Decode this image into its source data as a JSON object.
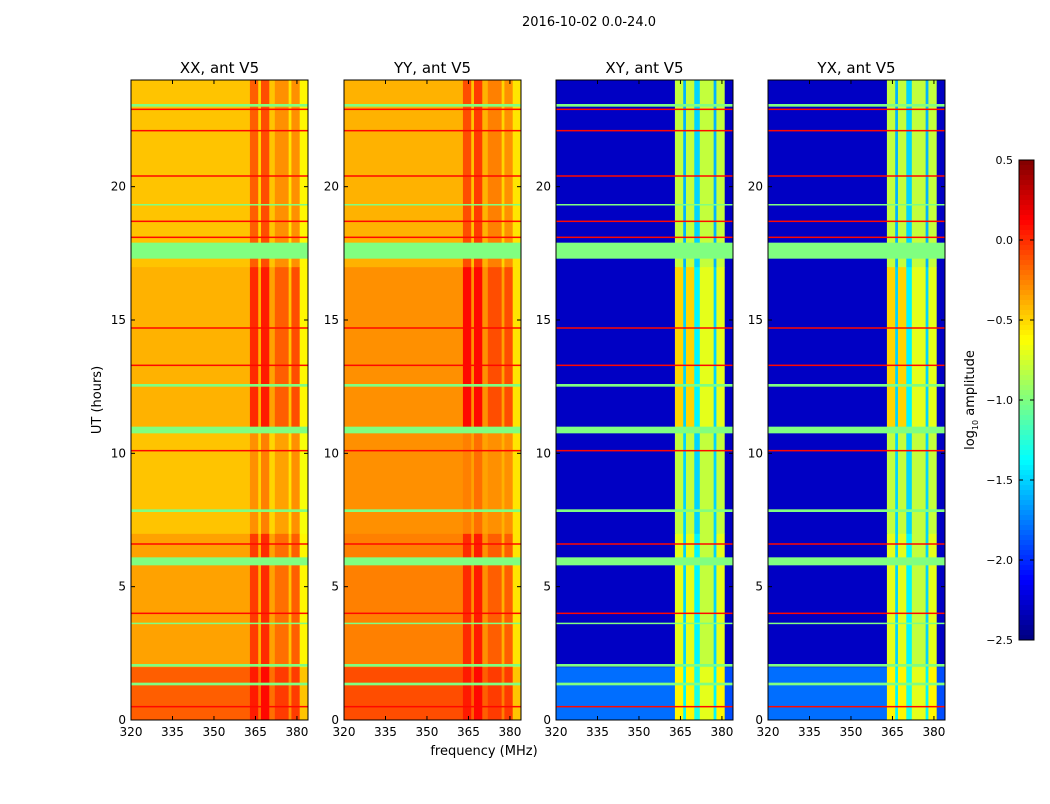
{
  "chart_data": {
    "type": "heatmap",
    "title": "2016-10-02 0.0-24.0",
    "xlabel": "frequency (MHz)",
    "ylabel": "UT (hours)",
    "xlim": [
      320,
      384
    ],
    "ylim": [
      0,
      24
    ],
    "xticks": [
      "320",
      "335",
      "350",
      "365",
      "380"
    ],
    "xtick_values": [
      320,
      335,
      350,
      365,
      380
    ],
    "yticks": [
      "0",
      "5",
      "10",
      "15",
      "20"
    ],
    "ytick_values": [
      0,
      5,
      10,
      15,
      20
    ],
    "colorbar": {
      "label_main": "log",
      "label_sub": "10",
      "label_rest": " amplitude",
      "range": [
        -2.5,
        0.5
      ],
      "ticks": [
        "0.5",
        "0.0",
        "−0.5",
        "−1.0",
        "−1.5",
        "−2.0",
        "−2.5"
      ],
      "tick_values": [
        0.5,
        0.0,
        -0.5,
        -1.0,
        -1.5,
        -2.0,
        -2.5
      ],
      "colormap": "jet"
    },
    "freq_band_edges_mhz": [
      320,
      363,
      366,
      367,
      370,
      372,
      377,
      378,
      381,
      384
    ],
    "time_segment_edges_hours": [
      0,
      2,
      7,
      10.8,
      17,
      24
    ],
    "flagged_hours": [
      [
        17.3,
        17.9
      ],
      [
        10.75,
        11.0
      ],
      [
        5.8,
        6.1
      ],
      [
        23.0,
        23.1
      ],
      [
        12.5,
        12.6
      ],
      [
        2.0,
        2.1
      ],
      [
        1.3,
        1.4
      ],
      [
        7.8,
        7.9
      ],
      [
        3.6,
        3.65
      ],
      [
        19.3,
        19.35
      ]
    ],
    "flagged_value": -1.0,
    "rfi_line_hours": [
      0.5,
      4.0,
      6.6,
      10.1,
      13.3,
      14.7,
      18.1,
      18.7,
      20.4,
      22.1,
      22.9
    ],
    "rfi_value": 0.1,
    "panels": [
      {
        "title": "XX, ant V5",
        "levels": [
          [
            -0.15,
            0.05,
            -0.2,
            0.1,
            -0.2,
            -0.05,
            -0.3,
            -0.05,
            -0.45
          ],
          [
            -0.35,
            -0.05,
            -0.4,
            0.0,
            -0.35,
            -0.2,
            -0.45,
            -0.15,
            -0.6
          ],
          [
            -0.45,
            -0.3,
            -0.5,
            -0.25,
            -0.5,
            -0.35,
            -0.55,
            -0.3,
            -0.65
          ],
          [
            -0.4,
            0.0,
            -0.4,
            0.05,
            -0.35,
            -0.15,
            -0.45,
            -0.1,
            -0.6
          ],
          [
            -0.45,
            -0.15,
            -0.5,
            -0.1,
            -0.45,
            -0.3,
            -0.55,
            -0.3,
            -0.6
          ]
        ]
      },
      {
        "title": "YY, ant V5",
        "levels": [
          [
            -0.1,
            0.05,
            -0.15,
            0.1,
            -0.15,
            -0.05,
            -0.25,
            -0.05,
            -0.45
          ],
          [
            -0.25,
            0.0,
            -0.3,
            0.05,
            -0.3,
            -0.15,
            -0.4,
            -0.15,
            -0.55
          ],
          [
            -0.3,
            -0.25,
            -0.35,
            -0.2,
            -0.35,
            -0.3,
            -0.4,
            -0.3,
            -0.55
          ],
          [
            -0.3,
            0.1,
            -0.3,
            0.1,
            -0.3,
            -0.1,
            -0.35,
            -0.1,
            -0.55
          ],
          [
            -0.4,
            -0.1,
            -0.45,
            -0.05,
            -0.4,
            -0.25,
            -0.5,
            -0.3,
            -0.55
          ]
        ]
      },
      {
        "title": "XY, ant V5",
        "levels": [
          [
            -1.8,
            -0.6,
            -1.4,
            -0.6,
            -1.3,
            -0.7,
            -1.4,
            -0.6,
            -1.9
          ],
          [
            -2.3,
            -0.7,
            -1.5,
            -0.7,
            -1.4,
            -0.8,
            -1.5,
            -0.7,
            -2.3
          ],
          [
            -2.3,
            -0.8,
            -1.5,
            -0.8,
            -1.5,
            -0.8,
            -1.5,
            -0.8,
            -2.3
          ],
          [
            -2.3,
            -0.5,
            -1.5,
            -0.5,
            -1.4,
            -0.7,
            -1.5,
            -0.7,
            -2.3
          ],
          [
            -2.3,
            -0.8,
            -1.6,
            -0.8,
            -1.5,
            -0.8,
            -1.6,
            -0.8,
            -2.3
          ]
        ]
      },
      {
        "title": "YX, ant V5",
        "levels": [
          [
            -1.8,
            -0.6,
            -1.4,
            -0.6,
            -1.3,
            -0.7,
            -1.4,
            -0.6,
            -1.9
          ],
          [
            -2.3,
            -0.7,
            -1.5,
            -0.7,
            -1.4,
            -0.8,
            -1.5,
            -0.7,
            -2.3
          ],
          [
            -2.3,
            -0.8,
            -1.5,
            -0.8,
            -1.5,
            -0.8,
            -1.5,
            -0.8,
            -2.3
          ],
          [
            -2.3,
            -0.5,
            -1.5,
            -0.5,
            -1.4,
            -0.7,
            -1.5,
            -0.7,
            -2.3
          ],
          [
            -2.3,
            -0.8,
            -1.6,
            -0.8,
            -1.5,
            -0.8,
            -1.6,
            -0.8,
            -2.3
          ]
        ]
      }
    ]
  }
}
